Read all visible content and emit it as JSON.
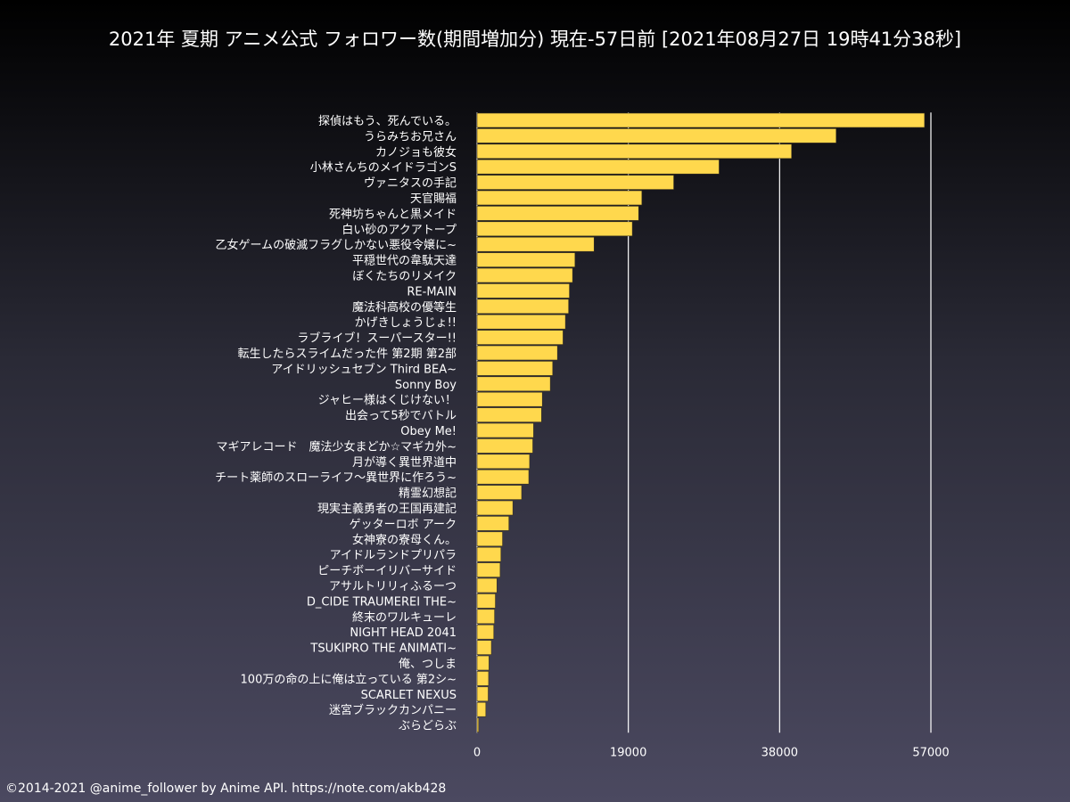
{
  "chart_data": {
    "type": "bar",
    "orientation": "horizontal",
    "title": "2021年 夏期 アニメ公式 フォロワー数(期間増加分) 現在-57日前 [2021年08月27日 19時41分38秒]",
    "xlabel": "",
    "ylabel": "",
    "xlim": [
      0,
      57000
    ],
    "xticks": [
      0,
      19000,
      38000,
      57000
    ],
    "xtick_labels": [
      "0",
      "19000",
      "38000",
      "57000"
    ],
    "grid": true,
    "bar_color": "#ffd84d",
    "categories": [
      "探偵はもう、死んでいる。",
      "うらみちお兄さん",
      "カノジョも彼女",
      "小林さんちのメイドラゴンS",
      "ヴァニタスの手記",
      "天官賜福",
      "死神坊ちゃんと黒メイド",
      "白い砂のアクアトープ",
      "乙女ゲームの破滅フラグしかない悪役令嬢に~",
      "平穏世代の韋駄天達",
      "ぼくたちのリメイク",
      "RE-MAIN",
      "魔法科高校の優等生",
      "かげきしょうじょ!!",
      "ラブライブ！スーパースター!!",
      "転生したらスライムだった件 第2期 第2部",
      "アイドリッシュセブン Third BEA~",
      "Sonny Boy",
      "ジャヒー様はくじけない！",
      "出会って5秒でバトル",
      "Obey Me!",
      "マギアレコード　魔法少女まどか☆マギカ外~",
      "月が導く異世界道中",
      "チート薬師のスローライフ〜異世界に作ろう~",
      "精霊幻想記",
      "現実主義勇者の王国再建記",
      "ゲッターロボ アーク",
      "女神寮の寮母くん。",
      "アイドルランドプリパラ",
      "ピーチボーイリバーサイド",
      "アサルトリリィふるーつ",
      "D_CIDE TRAUMEREI THE~",
      "終末のワルキューレ",
      "NIGHT HEAD 2041",
      "TSUKIPRO THE ANIMATI~",
      "俺、つしま",
      "100万の命の上に俺は立っている 第2シ~",
      "SCARLET NEXUS",
      "迷宮ブラックカンパニー",
      "ぶらどらぶ"
    ],
    "values": [
      56200,
      45100,
      39500,
      30400,
      24700,
      20700,
      20300,
      19500,
      14700,
      12300,
      12000,
      11600,
      11500,
      11100,
      10800,
      10100,
      9500,
      9200,
      8200,
      8100,
      7100,
      7000,
      6600,
      6500,
      5600,
      4500,
      4000,
      3200,
      3000,
      2900,
      2500,
      2300,
      2200,
      2100,
      1800,
      1500,
      1450,
      1400,
      1100,
      200
    ]
  },
  "footer": {
    "credit": "©2014-2021 @anime_follower by Anime API. https://note.com/akb428"
  }
}
